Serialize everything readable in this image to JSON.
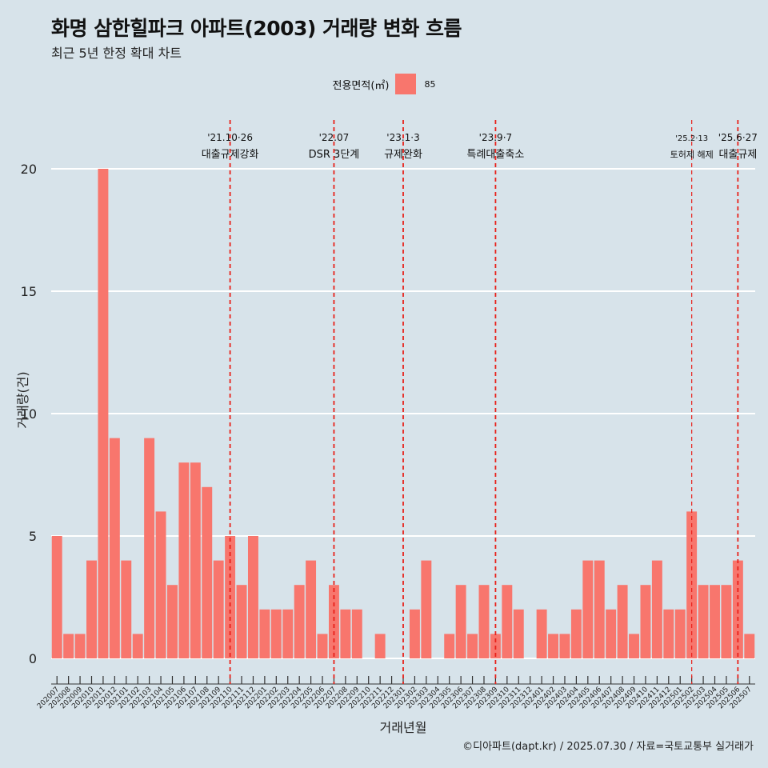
{
  "title": "화명 삼한힐파크 아파트(2003) 거래량 변화 흐름",
  "subtitle": "최근 5년 한정 확대 차트",
  "caption": "©디아파트(dapt.kr) / 2025.07.30 / 자료=국토교통부 실거래가",
  "legend": {
    "title": "전용면적(㎡)",
    "label": "85",
    "color": "#f8766d"
  },
  "chart_data": {
    "type": "bar",
    "xlabel": "거래년월",
    "ylabel": "거래량(건)",
    "ylim": [
      -1.7,
      22
    ],
    "yticks": [
      0,
      5,
      10,
      15,
      20
    ],
    "grid": true,
    "legend_position": "top",
    "categories": [
      "202007",
      "202008",
      "202009",
      "202010",
      "202011",
      "202012",
      "202101",
      "202102",
      "202103",
      "202104",
      "202105",
      "202106",
      "202107",
      "202108",
      "202109",
      "202110",
      "202111",
      "202112",
      "202201",
      "202202",
      "202203",
      "202204",
      "202205",
      "202206",
      "202207",
      "202208",
      "202209",
      "202210",
      "202211",
      "202212",
      "202301",
      "202302",
      "202303",
      "202304",
      "202305",
      "202306",
      "202307",
      "202308",
      "202309",
      "202310",
      "202311",
      "202312",
      "202401",
      "202402",
      "202403",
      "202404",
      "202405",
      "202406",
      "202407",
      "202408",
      "202409",
      "202410",
      "202411",
      "202412",
      "202501",
      "202502",
      "202503",
      "202504",
      "202505",
      "202506",
      "202507"
    ],
    "series": [
      {
        "name": "85",
        "values": [
          5,
          1,
          1,
          4,
          20,
          9,
          4,
          1,
          9,
          6,
          3,
          8,
          8,
          7,
          4,
          5,
          3,
          5,
          2,
          2,
          2,
          3,
          4,
          1,
          3,
          2,
          2,
          0,
          1,
          0,
          0,
          2,
          4,
          0,
          1,
          3,
          1,
          3,
          1,
          3,
          2,
          0,
          2,
          1,
          1,
          2,
          4,
          4,
          2,
          3,
          1,
          3,
          4,
          2,
          2,
          6,
          3,
          3,
          3,
          4,
          1
        ]
      }
    ],
    "annotations": [
      {
        "x": "202110",
        "date": "'21.10·26",
        "label": "대출규제강화",
        "size": "normal"
      },
      {
        "x": "202207",
        "date": "'22.07",
        "label": "DSR 3단계",
        "size": "normal"
      },
      {
        "x": "202301",
        "date": "'23.1·3",
        "label": "규제완화",
        "size": "normal"
      },
      {
        "x": "202309",
        "date": "'23.9·7",
        "label": "특례대출축소",
        "size": "normal"
      },
      {
        "x": "202502",
        "date": "'25.2·13",
        "label": "토허제 해제",
        "size": "small"
      },
      {
        "x": "202506",
        "date": "'25.6·27",
        "label": "대출규제",
        "size": "normal"
      }
    ]
  }
}
